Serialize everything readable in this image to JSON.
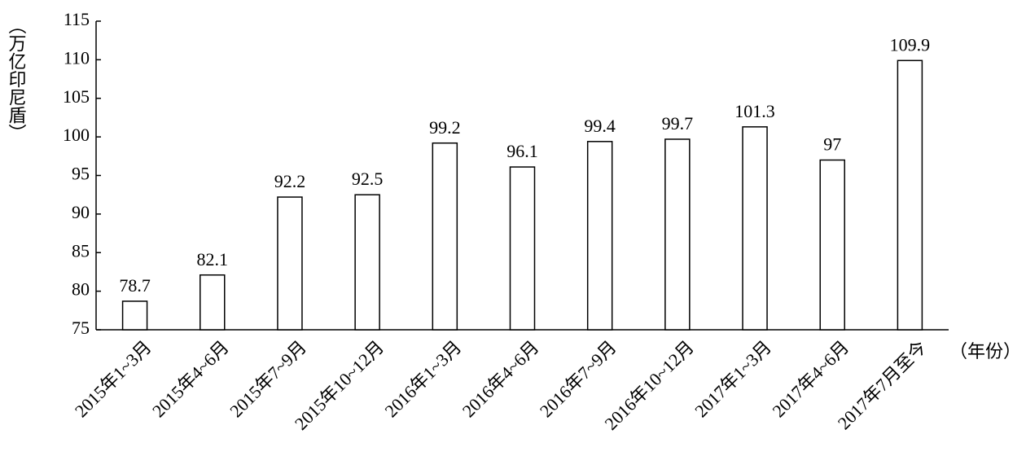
{
  "chart_data": {
    "type": "bar",
    "y_label": "（万亿印尼盾）",
    "x_label": "（年份）",
    "categories": [
      "2015年1~3月",
      "2015年4~6月",
      "2015年7~9月",
      "2015年10~12月",
      "2016年1~3月",
      "2016年4~6月",
      "2016年7~9月",
      "2016年10~12月",
      "2017年1~3月",
      "2017年4~6月",
      "2017年7月至今"
    ],
    "values": [
      78.7,
      82.1,
      92.2,
      92.5,
      99.2,
      96.1,
      99.4,
      99.7,
      101.3,
      97,
      109.9
    ],
    "color": "#ffffff",
    "ylim": [
      75,
      115
    ],
    "yticks": [
      75,
      80,
      85,
      90,
      95,
      100,
      105,
      110,
      115
    ],
    "grid": false
  }
}
